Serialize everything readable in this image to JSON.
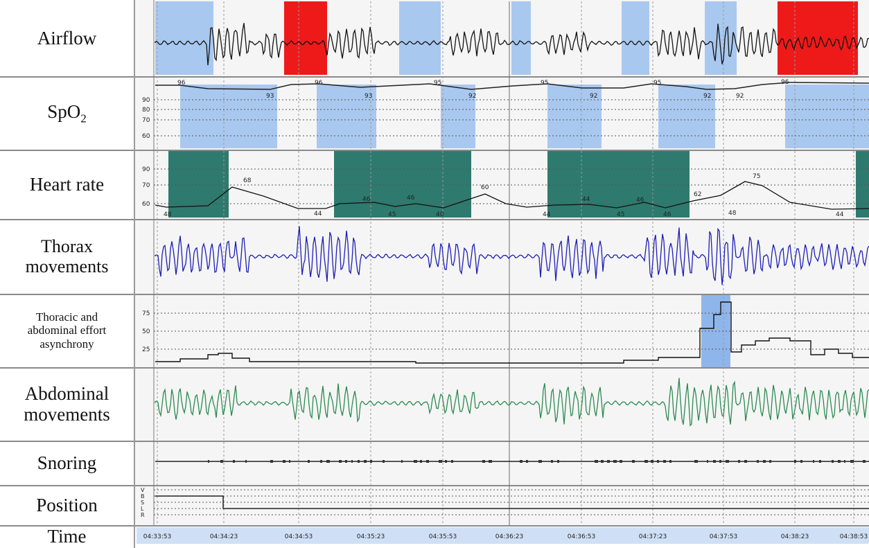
{
  "rows": {
    "airflow": "Airflow",
    "spo2_main": "SpO",
    "spo2_sub": "2",
    "heart_rate": "Heart rate",
    "thorax_1": "Thorax",
    "thorax_2": "movements",
    "async_1": "Thoracic and",
    "async_2": "abdominal effort",
    "async_3": "asynchrony",
    "abdominal_1": "Abdominal",
    "abdominal_2": "movements",
    "snoring": "Snoring",
    "position": "Position",
    "time": "Time"
  },
  "spo2": {
    "ticks": [
      "90",
      "80",
      "70",
      "60"
    ],
    "values": [
      "96",
      "93",
      "96",
      "93",
      "95",
      "92",
      "95",
      "92",
      "95",
      "92",
      "92",
      "96"
    ]
  },
  "heart_rate": {
    "ticks": [
      "90",
      "70",
      "60"
    ],
    "values": [
      "48",
      "68",
      "44",
      "46",
      "45",
      "46",
      "40",
      "60",
      "44",
      "44",
      "45",
      "46",
      "46",
      "62",
      "48",
      "75",
      "44"
    ]
  },
  "asynchrony": {
    "ticks": [
      "75",
      "50",
      "25"
    ]
  },
  "position": {
    "ticks": [
      "V",
      "B",
      "S",
      "L",
      "R"
    ]
  },
  "time": {
    "ticks": [
      "04:33:53",
      "04:34:23",
      "04:34:53",
      "04:35:23",
      "04:35:53",
      "04:36:23",
      "04:36:53",
      "04:37:23",
      "04:37:53",
      "04:38:23",
      "04:38:53"
    ]
  },
  "colors": {
    "apnea_light": "#a9c8ef",
    "apnea_red": "#ee1a1a",
    "hr_band": "#2e7a6e",
    "thorax_line": "#1d1db8",
    "abdomen_line": "#2a8a50",
    "asynchrony_highlight": "#8fb6ea"
  }
}
